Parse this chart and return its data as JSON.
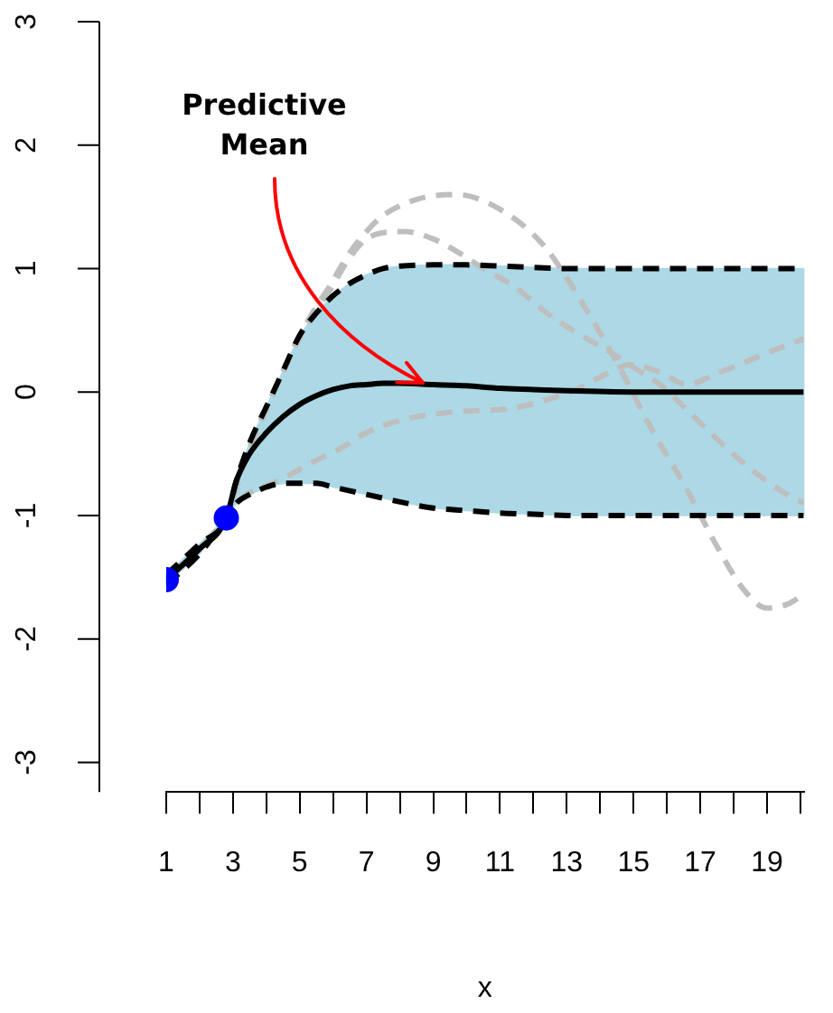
{
  "chart_data": {
    "type": "line",
    "xlabel": "x",
    "annotations": [
      {
        "text": "Predictive\nMean",
        "x": 8.7,
        "y": 0.07
      }
    ],
    "xlim": [
      1,
      20.1
    ],
    "ylim": [
      -3.24,
      3
    ],
    "xticks": [
      1,
      {
        "value": 2,
        "label": null
      },
      3,
      {
        "value": 4,
        "label": null
      },
      5,
      {
        "value": 6,
        "label": null
      },
      7,
      {
        "value": 8,
        "label": null
      },
      9,
      {
        "value": 10,
        "label": null
      },
      11,
      {
        "value": 12,
        "label": null
      },
      13,
      {
        "value": 14,
        "label": null
      },
      15,
      {
        "value": 16,
        "label": null
      },
      17,
      {
        "value": 18,
        "label": null
      },
      19,
      {
        "value": 20,
        "label": null
      }
    ],
    "yticks": [
      -3,
      -2,
      -1,
      0,
      1,
      2,
      3
    ],
    "grid": false,
    "legend": false,
    "marker": "none",
    "series": [
      {
        "color": "#bebebe",
        "line_style": "dashed",
        "x": [
          1,
          2,
          2.8,
          3.3,
          3.8,
          4.3,
          4.8,
          5.4,
          5.9,
          6.4,
          7,
          7.5,
          8.5,
          9.7,
          11,
          12.3,
          13.4,
          14.5,
          15.5,
          16.6,
          17.5,
          18.3,
          19,
          19.6,
          20.1
        ],
        "values": [
          -1.52,
          -1.27,
          -1.02,
          -0.6,
          -0.25,
          0.05,
          0.35,
          0.65,
          0.86,
          1.09,
          1.3,
          1.43,
          1.56,
          1.6,
          1.48,
          1.19,
          0.75,
          0.24,
          -0.28,
          -0.79,
          -1.25,
          -1.6,
          -1.75,
          -1.72,
          -1.64
        ]
      },
      {
        "color": "#bebebe",
        "line_style": "dashed",
        "x": [
          1,
          2,
          2.8,
          3.3,
          3.8,
          4.3,
          4.8,
          5.4,
          5.9,
          6.4,
          6.95,
          7.5,
          8.15,
          9,
          9.7,
          10.5,
          11.4,
          12.5,
          13.3,
          14.2,
          15,
          15.8,
          17,
          18.4,
          19.6,
          20.1
        ],
        "values": [
          -1.52,
          -1.27,
          -1.02,
          -0.6,
          -0.27,
          0.04,
          0.33,
          0.63,
          0.82,
          1.05,
          1.23,
          1.29,
          1.3,
          1.24,
          1.14,
          1.0,
          0.86,
          0.62,
          0.48,
          0.34,
          0.2,
          0.06,
          -0.25,
          -0.6,
          -0.83,
          -0.9
        ]
      },
      {
        "color": "#bebebe",
        "line_style": "dashed",
        "x": [
          1,
          2,
          2.8,
          3.3,
          3.8,
          4.5,
          5.3,
          6.2,
          7,
          8,
          9,
          9.7,
          11.4,
          12.3,
          13.2,
          14,
          14.9,
          15.8,
          16.6,
          17.5,
          18.5,
          19.3,
          20.1
        ],
        "values": [
          -1.52,
          -1.27,
          -1.02,
          -0.85,
          -0.78,
          -0.7,
          -0.58,
          -0.46,
          -0.33,
          -0.23,
          -0.18,
          -0.16,
          -0.13,
          -0.07,
          0.01,
          0.12,
          0.22,
          0.16,
          0.06,
          0.15,
          0.26,
          0.35,
          0.43
        ]
      },
      {
        "color": "#000000",
        "line_style": "dashed",
        "x": [
          1,
          2,
          2.8,
          3.1,
          3.5,
          4,
          4.5,
          5,
          5.5,
          6,
          6.5,
          7,
          7.5,
          8,
          9,
          10,
          11,
          12,
          13,
          15,
          17,
          20.1
        ],
        "values": [
          -1.48,
          -1.23,
          -1.02,
          -0.72,
          -0.41,
          -0.12,
          0.17,
          0.46,
          0.64,
          0.78,
          0.88,
          0.95,
          1.0,
          1.02,
          1.03,
          1.03,
          1.02,
          1.01,
          1.0,
          1.0,
          1.0,
          1.0
        ]
      },
      {
        "color": "#000000",
        "line_style": "dashed",
        "x": [
          1,
          2,
          2.8,
          3.1,
          3.5,
          4,
          4.5,
          5,
          5.5,
          6,
          6.5,
          7,
          7.5,
          8,
          9,
          10,
          11,
          12,
          13,
          15,
          17,
          20.1
        ],
        "values": [
          -1.56,
          -1.31,
          -1.02,
          -0.9,
          -0.83,
          -0.77,
          -0.74,
          -0.74,
          -0.74,
          -0.77,
          -0.8,
          -0.83,
          -0.86,
          -0.89,
          -0.94,
          -0.96,
          -0.98,
          -0.99,
          -1.0,
          -1.0,
          -1.0,
          -1.0
        ]
      },
      {
        "color": "#000000",
        "colors": [
          "#add8e6",
          "#add8e6",
          "#add8e6",
          "#add8e6",
          "#add8e6",
          "#add8e6",
          "#add8e6",
          "#add8e6",
          "#add8e6",
          "#add8e6",
          "#add8e6",
          "#add8e6",
          "#add8e6",
          "#add8e6",
          "#add8e6",
          "#add8e6",
          "#add8e6",
          "#add8e6",
          "#add8e6",
          "#add8e6",
          "#add8e6",
          "#add8e6"
        ],
        "line_style": "solid",
        "x": [
          1,
          2,
          2.8,
          3.1,
          3.5,
          4,
          4.5,
          5,
          5.5,
          6,
          6.5,
          7,
          7.5,
          8,
          9,
          10,
          11,
          12,
          13,
          15,
          17,
          20.1
        ],
        "values": [
          -1.52,
          -1.27,
          -1.02,
          -0.72,
          -0.5,
          -0.33,
          -0.2,
          -0.1,
          -0.03,
          0.02,
          0.05,
          0.06,
          0.07,
          0.07,
          0.06,
          0.05,
          0.03,
          0.02,
          0.01,
          0,
          0,
          0
        ],
        "lower": [
          -1.56,
          -1.31,
          -1.02,
          -0.9,
          -0.83,
          -0.77,
          -0.74,
          -0.74,
          -0.74,
          -0.77,
          -0.8,
          -0.83,
          -0.86,
          -0.89,
          -0.94,
          -0.96,
          -0.98,
          -0.99,
          -1.0,
          -1.0,
          -1.0,
          -1.0
        ],
        "upper": [
          -1.48,
          -1.23,
          -1.02,
          -0.72,
          -0.41,
          -0.12,
          0.17,
          0.46,
          0.64,
          0.78,
          0.88,
          0.95,
          1.0,
          1.02,
          1.03,
          1.03,
          1.02,
          1.01,
          1.0,
          1.0,
          1.0,
          1.0
        ]
      },
      {
        "type": "scatter",
        "color": "#0000ff",
        "marker": "circle",
        "x": [
          1,
          2.8
        ],
        "values": [
          -1.52,
          -1.02
        ]
      }
    ]
  }
}
